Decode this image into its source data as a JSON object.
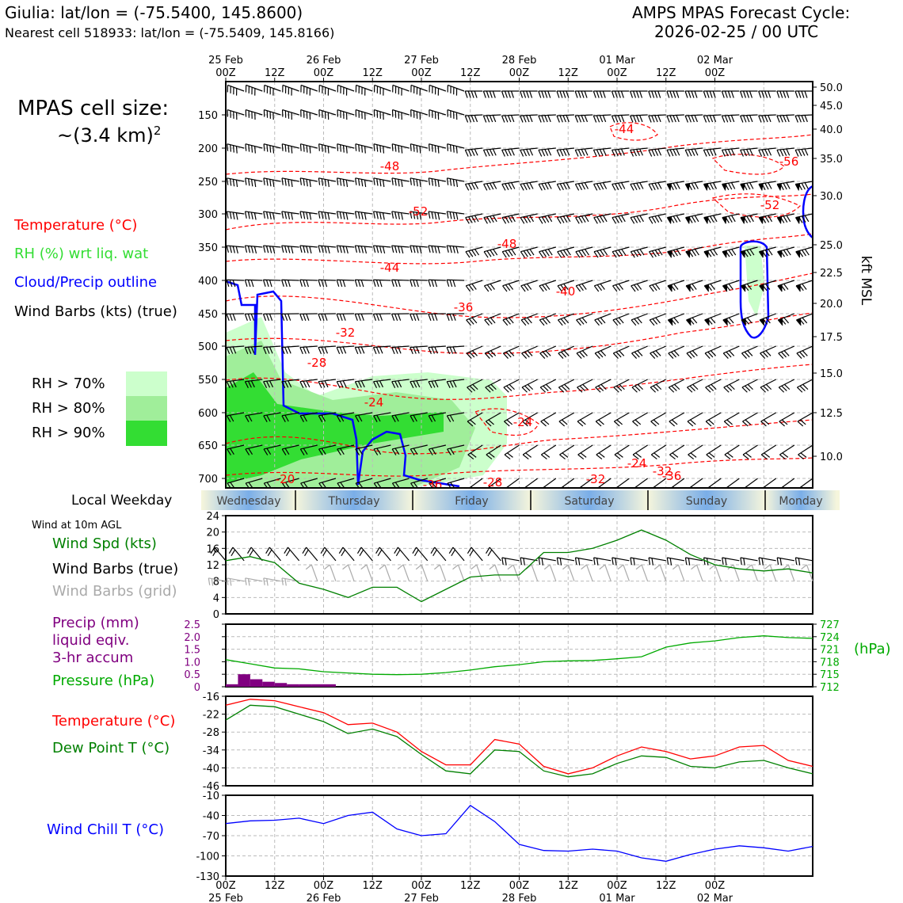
{
  "header": {
    "site_line": "Giulia: lat/lon = (-75.5400, 145.8600)",
    "cell_line": "Nearest cell 518933: lat/lon = (-75.5409, 145.8166)",
    "cycle_line1": "AMPS MPAS Forecast Cycle:",
    "cycle_line2": "2026-02-25 / 00 UTC",
    "cell_size_line1": "MPAS cell size:",
    "cell_size_line2": "~(3.4 km)",
    "cell_size_exp": "2"
  },
  "legend": {
    "temperature": "Temperature (°C)",
    "rh": "RH (%) wrt liq. wat",
    "cloud": "Cloud/Precip outline",
    "barbs": "Wind Barbs (kts) (true)",
    "rh70": "RH > 70%",
    "rh80": "RH > 80%",
    "rh90": "RH > 90%"
  },
  "colors": {
    "temperature": "#ff0000",
    "rh_label": "#33dd33",
    "cloud": "#0000ff",
    "rh70": "#ccffcc",
    "rh80": "#a0ee9a",
    "rh90": "#33dd33",
    "wind_speed": "#008000",
    "precip": "#800080",
    "pressure": "#00aa00",
    "dewpoint": "#008000",
    "windchill": "#0000ff",
    "grid_barbs": "#aaaaaa"
  },
  "time_axis": {
    "top_dates": [
      "25 Feb",
      "26 Feb",
      "27 Feb",
      "28 Feb",
      "01 Mar",
      "02 Mar"
    ],
    "hour_labels": [
      "00Z",
      "12Z",
      "00Z",
      "12Z",
      "00Z",
      "12Z",
      "00Z",
      "12Z",
      "00Z",
      "12Z",
      "00Z"
    ],
    "bottom_dates": [
      "25 Feb",
      "26 Feb",
      "27 Feb",
      "28 Feb",
      "01 Mar",
      "02 Mar"
    ]
  },
  "weekday": {
    "label": "Local Weekday",
    "days": [
      "Wednesday",
      "Thursday",
      "Friday",
      "Saturday",
      "Sunday",
      "Monday"
    ]
  },
  "chart_data": [
    {
      "type": "heatmap",
      "title": "Time-height cross section",
      "ylabel_right": "kft MSL",
      "pressure_ticks": [
        150,
        200,
        250,
        300,
        350,
        400,
        450,
        500,
        550,
        600,
        650,
        700
      ],
      "kft_ticks": [
        "50.0",
        "45.0",
        "40.0",
        "35.0",
        "30.0",
        "25.0",
        "22.5",
        "20.0",
        "17.5",
        "15.0",
        "12.5",
        "10.0"
      ],
      "temperature_contour_labels": [
        "-44",
        "-48",
        "-52",
        "-48",
        "-44",
        "-40",
        "-36",
        "-32",
        "-28",
        "-24",
        "-24",
        "-24",
        "-20",
        "-36",
        "-52",
        "-56",
        "-28",
        "-32",
        "-36",
        "-32"
      ]
    },
    {
      "type": "line",
      "sublabel": "Wind at 10m AGL",
      "legend": [
        "Wind Spd (kts)",
        "Wind Barbs (true)",
        "Wind Barbs (grid)"
      ],
      "ylim": [
        0,
        24
      ],
      "yticks": [
        0,
        4,
        8,
        12,
        16,
        20,
        24
      ],
      "x_hours": [
        0,
        6,
        12,
        18,
        24,
        30,
        36,
        42,
        48,
        54,
        60,
        66,
        72,
        78,
        84,
        90,
        96,
        102,
        108,
        114,
        120,
        126,
        132,
        138,
        144
      ],
      "series": [
        {
          "name": "Wind Spd (kts)",
          "values": [
            13,
            14,
            12.5,
            7.5,
            6,
            4,
            6.5,
            6.5,
            3,
            6,
            9,
            9.5,
            9.5,
            15,
            15,
            16,
            18,
            20.5,
            18,
            14.5,
            12,
            11,
            10.5,
            11,
            10
          ]
        }
      ]
    },
    {
      "type": "bar",
      "legend": [
        "Precip (mm)",
        "liquid eqiv.",
        "3-hr accum",
        "Pressure (hPa)"
      ],
      "ylim_precip": [
        0,
        2.5
      ],
      "yticks_precip": [
        "0",
        "0.5",
        "1.0",
        "1.5",
        "2.0",
        "2.5"
      ],
      "ylim_pressure": [
        712,
        727
      ],
      "yticks_pressure": [
        712,
        715,
        718,
        721,
        724,
        727
      ],
      "pressure_unit": "(hPa)",
      "precip_hours": [
        0,
        3,
        6,
        9,
        12,
        15,
        18,
        21,
        24,
        27
      ],
      "precip_values": [
        0.1,
        0.5,
        0.3,
        0.2,
        0.15,
        0.1,
        0.1,
        0.1,
        0.1,
        0
      ],
      "pressure_hours": [
        0,
        6,
        12,
        18,
        24,
        30,
        36,
        42,
        48,
        54,
        60,
        66,
        72,
        78,
        84,
        90,
        96,
        102,
        108,
        114,
        120,
        126,
        132,
        138,
        144
      ],
      "pressure_values": [
        718.5,
        717.5,
        716.5,
        716.3,
        715.6,
        715.3,
        715,
        714.9,
        715,
        715.4,
        716,
        716.8,
        717.3,
        718,
        718.2,
        718.3,
        718.7,
        719.2,
        721.5,
        722.5,
        723,
        723.8,
        724.2,
        723.8,
        723.6
      ]
    },
    {
      "type": "line",
      "legend": [
        "Temperature (°C)",
        "Dew Point T (°C)"
      ],
      "ylim": [
        -46,
        -16
      ],
      "yticks": [
        -16,
        -22,
        -28,
        -34,
        -40,
        -46
      ],
      "x_hours": [
        0,
        6,
        12,
        18,
        24,
        30,
        36,
        42,
        48,
        54,
        60,
        66,
        72,
        78,
        84,
        90,
        96,
        102,
        108,
        114,
        120,
        126,
        132,
        138,
        144
      ],
      "series": [
        {
          "name": "Temperature (°C)",
          "values": [
            -19,
            -17,
            -17.5,
            -19.5,
            -21.5,
            -25.5,
            -25,
            -28,
            -34.5,
            -39,
            -39,
            -30.5,
            -32,
            -39.5,
            -42,
            -40,
            -36,
            -33,
            -34.5,
            -37,
            -36,
            -33,
            -32.5,
            -37.5,
            -39.5
          ]
        },
        {
          "name": "Dew Point T (°C)",
          "values": [
            -24,
            -19,
            -19.5,
            -22,
            -24.5,
            -28.5,
            -27,
            -29.5,
            -35.5,
            -41,
            -42,
            -34,
            -34.5,
            -41,
            -43,
            -42,
            -38.5,
            -36,
            -36.5,
            -39.5,
            -40,
            -38,
            -37.5,
            -40,
            -42
          ]
        }
      ]
    },
    {
      "type": "line",
      "legend": [
        "Wind Chill T (°C)"
      ],
      "ylim": [
        -130,
        -10
      ],
      "yticks": [
        -10,
        -40,
        -70,
        -100,
        -130
      ],
      "x_hours": [
        0,
        6,
        12,
        18,
        24,
        30,
        36,
        42,
        48,
        54,
        60,
        66,
        72,
        78,
        84,
        90,
        96,
        102,
        108,
        114,
        120,
        126,
        132,
        138,
        144
      ],
      "series": [
        {
          "name": "Wind Chill T (°C)",
          "values": [
            -52,
            -48,
            -47,
            -44,
            -52,
            -40,
            -35,
            -60,
            -70,
            -67,
            -25,
            -49,
            -83,
            -92,
            -93,
            -90,
            -93,
            -103,
            -108,
            -98,
            -90,
            -85,
            -88,
            -93,
            -86
          ]
        }
      ]
    }
  ]
}
